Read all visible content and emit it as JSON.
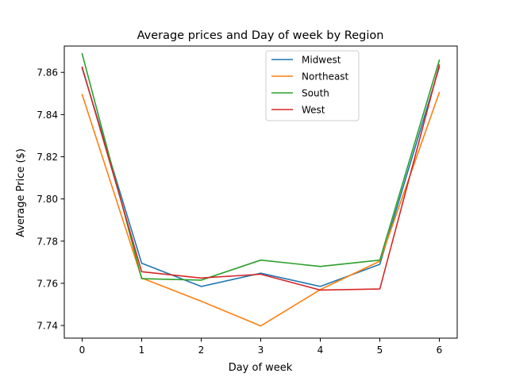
{
  "chart_data": {
    "type": "line",
    "title": "Average prices and Day of week by Region",
    "xlabel": "Day of week",
    "ylabel": "Average Price ($)",
    "x": [
      0,
      1,
      2,
      3,
      4,
      5,
      6
    ],
    "xlim": [
      -0.3,
      6.3
    ],
    "ylim": [
      7.734,
      7.8725
    ],
    "xticks": [
      "0",
      "1",
      "2",
      "3",
      "4",
      "5",
      "6"
    ],
    "yticks": [
      "7.74",
      "7.76",
      "7.78",
      "7.80",
      "7.82",
      "7.84",
      "7.86"
    ],
    "grid": false,
    "legend_position": "top-right",
    "series": [
      {
        "name": "Midwest",
        "color": "#1f77b4",
        "values": [
          7.862,
          7.7695,
          7.7585,
          7.7648,
          7.7585,
          7.769,
          7.8625
        ]
      },
      {
        "name": "Northeast",
        "color": "#ff7f0e",
        "values": [
          7.8495,
          7.7625,
          7.7515,
          7.7398,
          7.757,
          7.7705,
          7.8505
        ]
      },
      {
        "name": "South",
        "color": "#2ca02c",
        "values": [
          7.8688,
          7.7622,
          7.7615,
          7.771,
          7.768,
          7.771,
          7.8658
        ]
      },
      {
        "name": "West",
        "color": "#d62728",
        "values": [
          7.8625,
          7.7655,
          7.7625,
          7.7643,
          7.7568,
          7.7573,
          7.8635
        ]
      }
    ]
  }
}
